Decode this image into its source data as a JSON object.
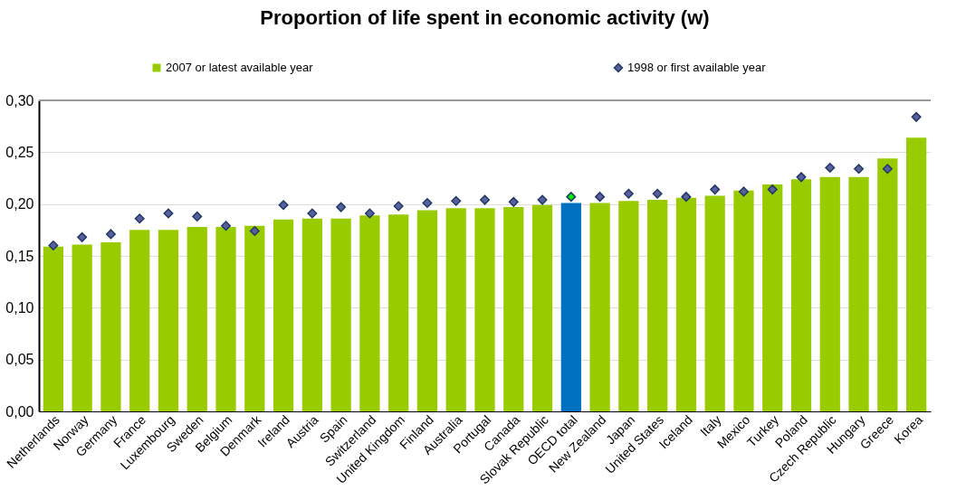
{
  "chart_data": {
    "type": "bar",
    "title": "Proportion of life spent in economic activity  (w)",
    "categories": [
      "Netherlands",
      "Norway",
      "Germany",
      "France",
      "Luxembourg",
      "Sweden",
      "Belgium",
      "Denmark",
      "Ireland",
      "Austria",
      "Spain",
      "Switzerland",
      "United Kingdom",
      "Finland",
      "Australia",
      "Portugal",
      "Canada",
      "Slovak Republic",
      "OECD total",
      "New Zealand",
      "Japan",
      "United States",
      "Iceland",
      "Italy",
      "Mexico",
      "Turkey",
      "Poland",
      "Czech Republic",
      "Hungary",
      "Greece",
      "Korea"
    ],
    "series": [
      {
        "name": "2007 or latest available year",
        "color": "#99cc00",
        "colors": [
          "#99cc00",
          "#99cc00",
          "#99cc00",
          "#99cc00",
          "#99cc00",
          "#99cc00",
          "#99cc00",
          "#99cc00",
          "#99cc00",
          "#99cc00",
          "#99cc00",
          "#99cc00",
          "#99cc00",
          "#99cc00",
          "#99cc00",
          "#99cc00",
          "#99cc00",
          "#99cc00",
          "#0070c0",
          "#99cc00",
          "#99cc00",
          "#99cc00",
          "#99cc00",
          "#99cc00",
          "#99cc00",
          "#99cc00",
          "#99cc00",
          "#99cc00",
          "#99cc00",
          "#99cc00",
          "#99cc00"
        ],
        "values": [
          0.159,
          0.161,
          0.163,
          0.175,
          0.175,
          0.178,
          0.178,
          0.179,
          0.185,
          0.186,
          0.186,
          0.189,
          0.19,
          0.194,
          0.196,
          0.196,
          0.197,
          0.199,
          0.201,
          0.201,
          0.203,
          0.204,
          0.206,
          0.208,
          0.213,
          0.219,
          0.224,
          0.226,
          0.226,
          0.244,
          0.264
        ]
      },
      {
        "name": "1998 or first available year",
        "type": "scatter",
        "marker": "diamond",
        "color": "#5a5f9e",
        "colors": [
          "#5a5f9e",
          "#5a5f9e",
          "#5a5f9e",
          "#5a5f9e",
          "#5a5f9e",
          "#5a5f9e",
          "#5a5f9e",
          "#5a5f9e",
          "#5a5f9e",
          "#5a5f9e",
          "#5a5f9e",
          "#5a5f9e",
          "#5a5f9e",
          "#5a5f9e",
          "#5a5f9e",
          "#5a5f9e",
          "#5a5f9e",
          "#5a5f9e",
          "#00ee00",
          "#5a5f9e",
          "#5a5f9e",
          "#5a5f9e",
          "#5a5f9e",
          "#5a5f9e",
          "#5a5f9e",
          "#5a5f9e",
          "#5a5f9e",
          "#5a5f9e",
          "#5a5f9e",
          "#5a5f9e",
          "#5a5f9e"
        ],
        "values": [
          0.16,
          0.168,
          0.171,
          0.186,
          0.191,
          0.188,
          0.179,
          0.174,
          0.199,
          0.191,
          0.197,
          0.191,
          0.198,
          0.201,
          0.203,
          0.204,
          0.202,
          0.204,
          0.207,
          0.207,
          0.21,
          0.21,
          0.207,
          0.214,
          0.212,
          0.214,
          0.226,
          0.235,
          0.234,
          0.234,
          0.284
        ]
      }
    ],
    "ylim": [
      0,
      0.3
    ],
    "yticks": [
      {
        "value": 0,
        "label": "0,00"
      },
      {
        "value": 0.05,
        "label": "0,05"
      },
      {
        "value": 0.1,
        "label": "0,10"
      },
      {
        "value": 0.15,
        "label": "0,15"
      },
      {
        "value": 0.2,
        "label": "0,20"
      },
      {
        "value": 0.25,
        "label": "0,25"
      },
      {
        "value": 0.3,
        "label": "0,30"
      }
    ],
    "grid": "y",
    "legend": "top"
  }
}
